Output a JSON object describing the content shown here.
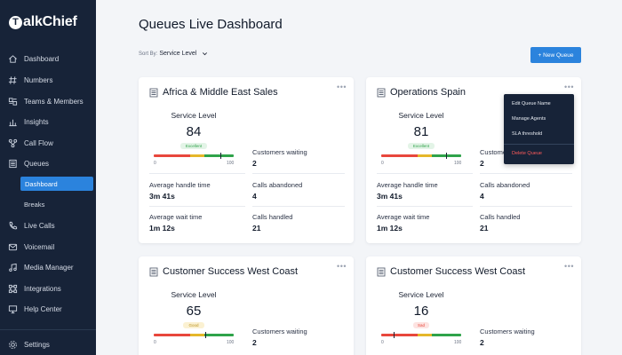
{
  "brand": {
    "mark": "T",
    "name": "alkChief"
  },
  "sidebar": {
    "items": [
      {
        "label": "Dashboard",
        "icon": "home-icon"
      },
      {
        "label": "Numbers",
        "icon": "hash-icon"
      },
      {
        "label": "Teams & Members",
        "icon": "team-icon"
      },
      {
        "label": "Insights",
        "icon": "chart-icon"
      },
      {
        "label": "Call Flow",
        "icon": "flow-icon"
      },
      {
        "label": "Queues",
        "icon": "queue-icon"
      },
      {
        "label": "Live Calls",
        "icon": "phone-icon"
      },
      {
        "label": "Voicemail",
        "icon": "voicemail-icon"
      },
      {
        "label": "Media Manager",
        "icon": "music-icon"
      },
      {
        "label": "Integrations",
        "icon": "integrations-icon"
      },
      {
        "label": "Help Center",
        "icon": "monitor-icon"
      },
      {
        "label": "Settings",
        "icon": "gear-icon"
      }
    ],
    "queues_sub": {
      "active": "Dashboard",
      "other": "Breaks"
    }
  },
  "header": {
    "title": "Queues Live Dashboard",
    "sort_label": "Sort By:",
    "sort_value": "Service Level",
    "new_queue": "+ New Queue"
  },
  "labels": {
    "service_level": "Service Level",
    "customers_waiting": "Customers waiting",
    "avg_handle_time": "Average handle time",
    "calls_abandoned": "Calls abandoned",
    "avg_wait_time": "Average wait time",
    "calls_handled": "Calls handled",
    "scale_min": "0",
    "scale_max": "100"
  },
  "cards": [
    {
      "title": "Africa & Middle East Sales",
      "service_level": "84",
      "status": "Excellent",
      "customers_waiting": "2",
      "avg_handle_time": "3m 41s",
      "calls_abandoned": "4",
      "avg_wait_time": "1m 12s",
      "calls_handled": "21"
    },
    {
      "title": "Operations Spain",
      "service_level": "81",
      "status": "Excellent",
      "customers_waiting": "2",
      "avg_handle_time": "3m 41s",
      "calls_abandoned": "4",
      "avg_wait_time": "1m 12s",
      "calls_handled": "21"
    },
    {
      "title": "Customer Success West Coast",
      "service_level": "65",
      "status": "Good",
      "customers_waiting": "2"
    },
    {
      "title": "Customer Success West Coast",
      "service_level": "16",
      "status": "Sad",
      "customers_waiting": "2"
    }
  ],
  "queue_menu": {
    "items": [
      "Edit Queue Name",
      "Manage Agents",
      "SLA threshold",
      "Delete Queue"
    ]
  },
  "colors": {
    "sidebar_bg": "#172338",
    "accent": "#2b83dd",
    "excellent": "#2fa34a",
    "good": "#e5b72a",
    "sad": "#e8473c",
    "danger": "#ff5b5b"
  }
}
